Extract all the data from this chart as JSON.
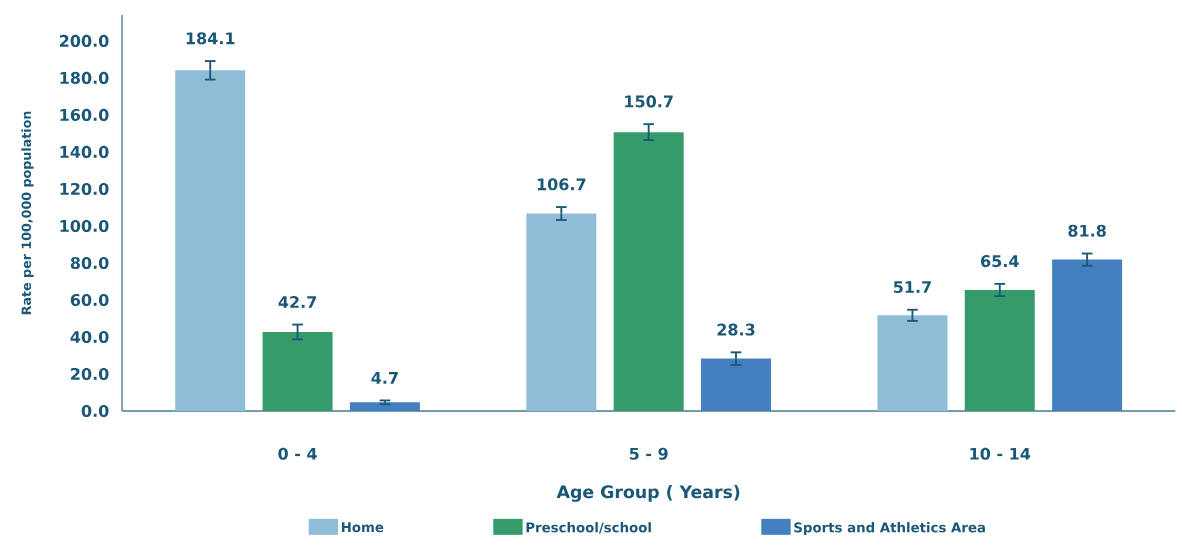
{
  "chart_data": {
    "type": "bar",
    "xlabel": "Age Group ( Years)",
    "ylabel": "Rate per 100,000 population",
    "categories": [
      "0 - 4",
      "5 - 9",
      "10 - 14"
    ],
    "series": [
      {
        "name": "Home",
        "color": "#8fbdd7",
        "values": [
          184.1,
          106.7,
          51.7
        ],
        "errors": [
          5,
          3.5,
          3
        ]
      },
      {
        "name": "Preschool/school",
        "color": "#359b6b",
        "values": [
          42.7,
          150.7,
          65.4
        ],
        "errors": [
          4,
          4.3,
          3.3
        ]
      },
      {
        "name": "Sports and Athletics Area",
        "color": "#4480c0",
        "values": [
          4.7,
          28.3,
          81.8
        ],
        "errors": [
          1,
          3.4,
          3.3
        ]
      }
    ],
    "ylim": [
      0,
      214
    ],
    "yticks": [
      {
        "value": 0,
        "label": "0.0"
      },
      {
        "value": 20,
        "label": "20.0"
      },
      {
        "value": 40,
        "label": "40.0"
      },
      {
        "value": 60,
        "label": "60.0"
      },
      {
        "value": 80,
        "label": "80.0"
      },
      {
        "value": 100,
        "label": "100.0"
      },
      {
        "value": 120,
        "label": "120.0"
      },
      {
        "value": 140,
        "label": "140.0"
      },
      {
        "value": 160,
        "label": "160.0"
      },
      {
        "value": 180,
        "label": "180.0"
      },
      {
        "value": 200,
        "label": "200.0"
      }
    ],
    "data_labels": true,
    "grid": false,
    "legend": "bottom"
  }
}
